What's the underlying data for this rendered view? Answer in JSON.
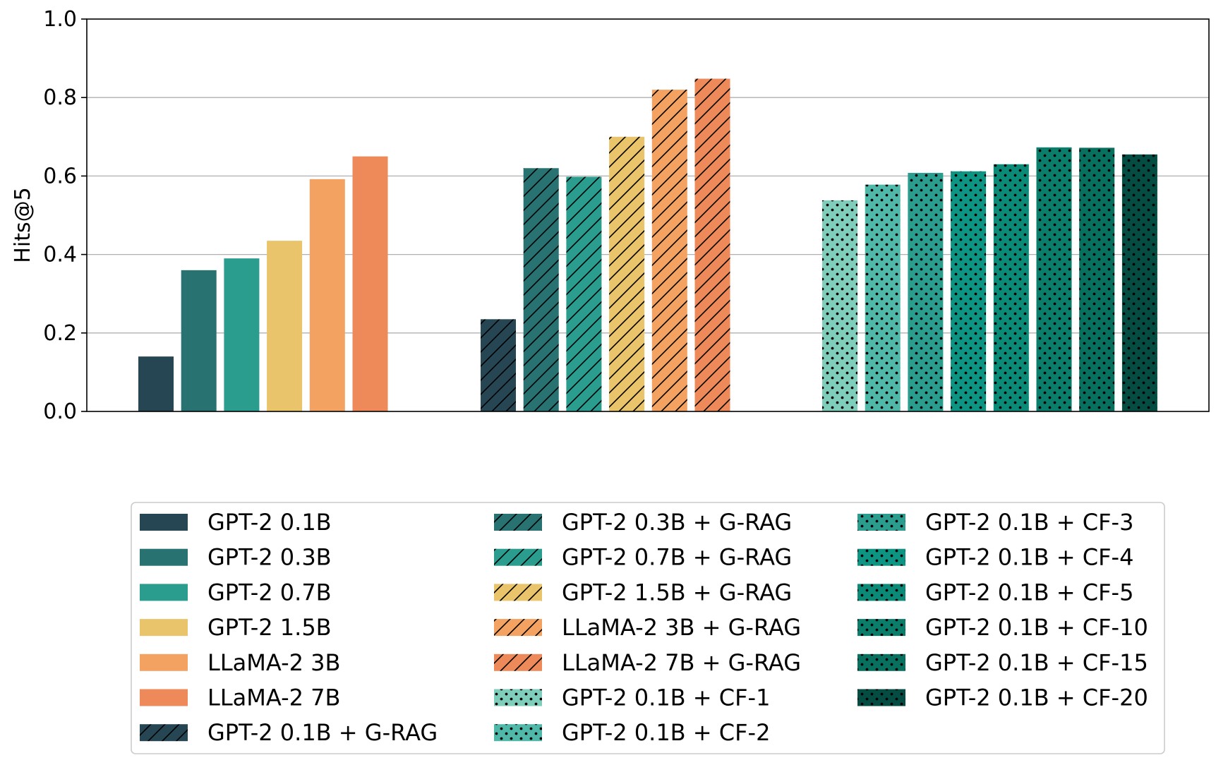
{
  "chart_data": {
    "type": "bar",
    "ylabel": "Hits@5",
    "xlabel": "",
    "ylim": [
      0,
      1.0
    ],
    "yticks": [
      "0.0",
      "0.2",
      "0.4",
      "0.6",
      "0.8",
      "1.0"
    ],
    "grid": "horizontal",
    "legend_placement": "bottom",
    "groups": [
      {
        "bars": [
          {
            "name": "GPT-2 0.1B",
            "value": 0.14,
            "color": "#264653",
            "pattern": "solid"
          },
          {
            "name": "GPT-2 0.3B",
            "value": 0.36,
            "color": "#287271",
            "pattern": "solid"
          },
          {
            "name": "GPT-2 0.7B",
            "value": 0.39,
            "color": "#2a9d8f",
            "pattern": "solid"
          },
          {
            "name": "GPT-2 1.5B",
            "value": 0.435,
            "color": "#e9c46a",
            "pattern": "solid"
          },
          {
            "name": "LLaMA-2 3B",
            "value": 0.592,
            "color": "#f4a261",
            "pattern": "solid"
          },
          {
            "name": "LLaMA-2 7B",
            "value": 0.65,
            "color": "#ee8959",
            "pattern": "solid"
          }
        ]
      },
      {
        "bars": [
          {
            "name": "GPT-2 0.1B + G-RAG",
            "value": 0.235,
            "color": "#264653",
            "pattern": "hatch"
          },
          {
            "name": "GPT-2 0.3B + G-RAG",
            "value": 0.62,
            "color": "#287271",
            "pattern": "hatch"
          },
          {
            "name": "GPT-2 0.7B + G-RAG",
            "value": 0.598,
            "color": "#2a9d8f",
            "pattern": "hatch"
          },
          {
            "name": "GPT-2 1.5B + G-RAG",
            "value": 0.7,
            "color": "#e9c46a",
            "pattern": "hatch"
          },
          {
            "name": "LLaMA-2 3B + G-RAG",
            "value": 0.82,
            "color": "#f4a261",
            "pattern": "hatch"
          },
          {
            "name": "LLaMA-2 7B + G-RAG",
            "value": 0.848,
            "color": "#ee8959",
            "pattern": "hatch"
          }
        ]
      },
      {
        "bars": [
          {
            "name": "GPT-2 0.1B + CF-1",
            "value": 0.538,
            "color": "#7fcdbb",
            "pattern": "dots"
          },
          {
            "name": "GPT-2 0.1B + CF-2",
            "value": 0.578,
            "color": "#4fb8a8",
            "pattern": "dots"
          },
          {
            "name": "GPT-2 0.1B + CF-3",
            "value": 0.608,
            "color": "#2a9d8f",
            "pattern": "dots"
          },
          {
            "name": "GPT-2 0.1B + CF-4",
            "value": 0.612,
            "color": "#0e9483",
            "pattern": "dots"
          },
          {
            "name": "GPT-2 0.1B + CF-5",
            "value": 0.63,
            "color": "#0b8a78",
            "pattern": "dots"
          },
          {
            "name": "GPT-2 0.1B + CF-10",
            "value": 0.673,
            "color": "#0a7d6b",
            "pattern": "dots"
          },
          {
            "name": "GPT-2 0.1B + CF-15",
            "value": 0.672,
            "color": "#08705f",
            "pattern": "dots"
          },
          {
            "name": "GPT-2 0.1B + CF-20",
            "value": 0.655,
            "color": "#054d42",
            "pattern": "dots"
          }
        ]
      }
    ],
    "legend_columns": [
      [
        "GPT-2 0.1B",
        "GPT-2 0.3B",
        "GPT-2 0.7B",
        "GPT-2 1.5B",
        "LLaMA-2 3B",
        "LLaMA-2 7B",
        "GPT-2 0.1B + G-RAG"
      ],
      [
        "GPT-2 0.3B + G-RAG",
        "GPT-2 0.7B + G-RAG",
        "GPT-2 1.5B + G-RAG",
        "LLaMA-2 3B + G-RAG",
        "LLaMA-2 7B + G-RAG",
        "GPT-2 0.1B + CF-1",
        "GPT-2 0.1B + CF-2"
      ],
      [
        "GPT-2 0.1B + CF-3",
        "GPT-2 0.1B + CF-4",
        "GPT-2 0.1B + CF-5",
        "GPT-2 0.1B + CF-10",
        "GPT-2 0.1B + CF-15",
        "GPT-2 0.1B + CF-20"
      ]
    ]
  }
}
